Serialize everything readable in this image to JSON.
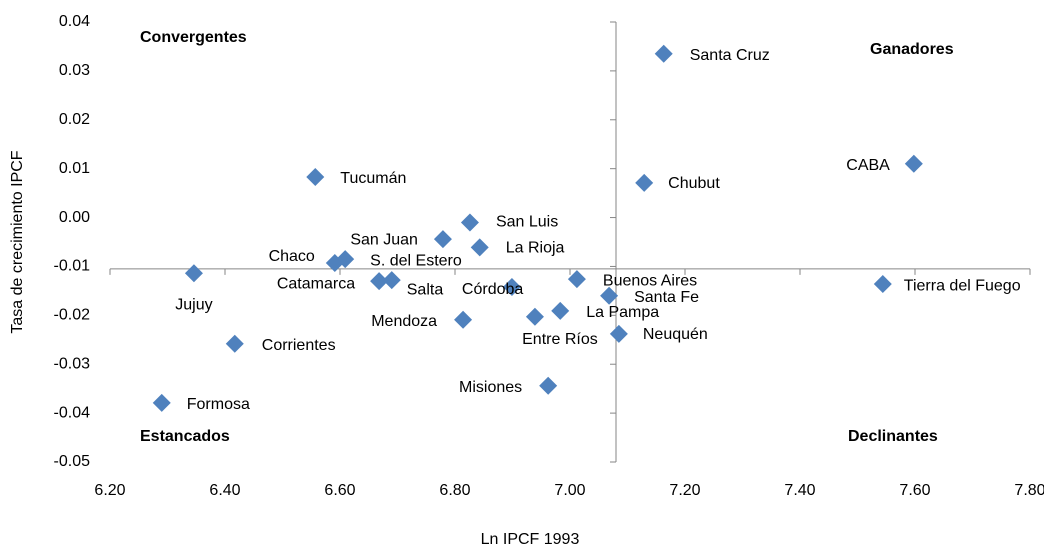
{
  "chart_data": {
    "type": "scatter",
    "x_axis_label": "Ln IPCF 1993",
    "y_axis_label": "Tasa de crecimiento IPCF",
    "annotations": [
      "Convergentes",
      "Ganadores",
      "Estancados",
      "Declinantes"
    ],
    "xlim": [
      6.2,
      7.8
    ],
    "ylim": [
      -0.05,
      0.04
    ],
    "xticks": [
      {
        "value": 6.2,
        "label": "6.20"
      },
      {
        "value": 6.4,
        "label": "6.40"
      },
      {
        "value": 6.6,
        "label": "6.60"
      },
      {
        "value": 6.8,
        "label": "6.80"
      },
      {
        "value": 7.0,
        "label": "7.00"
      },
      {
        "value": 7.2,
        "label": "7.20"
      },
      {
        "value": 7.4,
        "label": "7.40"
      },
      {
        "value": 7.6,
        "label": "7.60"
      },
      {
        "value": 7.8,
        "label": "7.80"
      }
    ],
    "yticks": [
      {
        "value": 0.04,
        "label": "0.04"
      },
      {
        "value": 0.03,
        "label": "0.03"
      },
      {
        "value": 0.02,
        "label": "0.02"
      },
      {
        "value": 0.01,
        "label": "0.01"
      },
      {
        "value": 0.0,
        "label": "0.00"
      },
      {
        "value": -0.01,
        "label": "-0.01"
      },
      {
        "value": -0.02,
        "label": "-0.02"
      },
      {
        "value": -0.03,
        "label": "-0.03"
      },
      {
        "value": -0.04,
        "label": "-0.04"
      },
      {
        "value": -0.05,
        "label": "-0.05"
      }
    ],
    "x_axis_crosses": -0.0105,
    "y_axis_crosses": 7.08,
    "color": "#4f81bd",
    "labels": [
      "Santa Cruz",
      "CABA",
      "Chubut",
      "Tucumán",
      "San Luis",
      "San Juan",
      "La Rioja",
      "Chaco",
      "S. del Estero",
      "Jujuy",
      "Catamarca",
      "Salta",
      "Córdoba",
      "Buenos Aires",
      "Santa Fe",
      "Tierra del Fuego",
      "La Pampa",
      "Entre Ríos",
      "Mendoza",
      "Neuquén",
      "Corrientes",
      "Misiones",
      "Formosa"
    ],
    "x": [
      7.163,
      7.598,
      7.129,
      6.557,
      6.826,
      6.779,
      6.843,
      6.591,
      6.609,
      6.346,
      6.668,
      6.69,
      6.899,
      7.012,
      7.068,
      7.544,
      6.983,
      6.939,
      6.814,
      7.085,
      6.417,
      6.962,
      6.29
    ],
    "y": [
      0.0335,
      0.011,
      0.0071,
      0.0083,
      -0.001,
      -0.0044,
      -0.0061,
      -0.0093,
      -0.0085,
      -0.0114,
      -0.013,
      -0.0128,
      -0.0142,
      -0.0126,
      -0.016,
      -0.0136,
      -0.0191,
      -0.0203,
      -0.0209,
      -0.0238,
      -0.0258,
      -0.0344,
      -0.0379
    ]
  }
}
